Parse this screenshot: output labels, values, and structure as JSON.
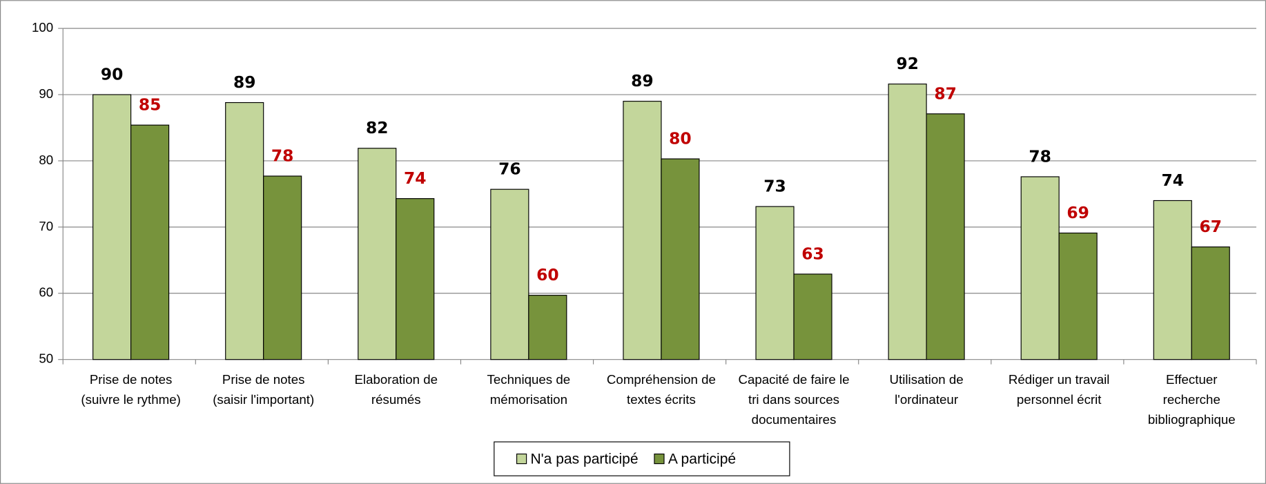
{
  "chart_data": {
    "type": "bar",
    "categories": [
      "Prise de notes\n(suivre le rythme)",
      "Prise de notes\n(saisir l'important)",
      "Elaboration de\nrésumés",
      "Techniques de\nmémorisation",
      "Compréhension de\ntextes écrits",
      "Capacité de faire le\ntri dans sources\ndocumentaires",
      "Utilisation de\nl'ordinateur",
      "Rédiger un travail\npersonnel écrit",
      "Effectuer\nrecherche\nbibliographique"
    ],
    "series": [
      {
        "name": "N'a pas participé",
        "color": "#c3d69b",
        "label_color": "#000000",
        "values": [
          90,
          88.8,
          81.9,
          75.7,
          89,
          73.1,
          91.6,
          77.6,
          74
        ],
        "value_labels": [
          "90",
          "89",
          "82",
          "76",
          "89",
          "73",
          "92",
          "78",
          "74"
        ]
      },
      {
        "name": "A participé",
        "color": "#77933c",
        "label_color": "#c00000",
        "values": [
          85.4,
          77.7,
          74.3,
          59.7,
          80.3,
          62.9,
          87.1,
          69.1,
          67
        ],
        "value_labels": [
          "85",
          "78",
          "74",
          "60",
          "80",
          "63",
          "87",
          "69",
          "67"
        ]
      }
    ],
    "ylim": [
      50,
      100
    ],
    "yticks": [
      50,
      60,
      70,
      80,
      90,
      100
    ],
    "grid": true
  }
}
